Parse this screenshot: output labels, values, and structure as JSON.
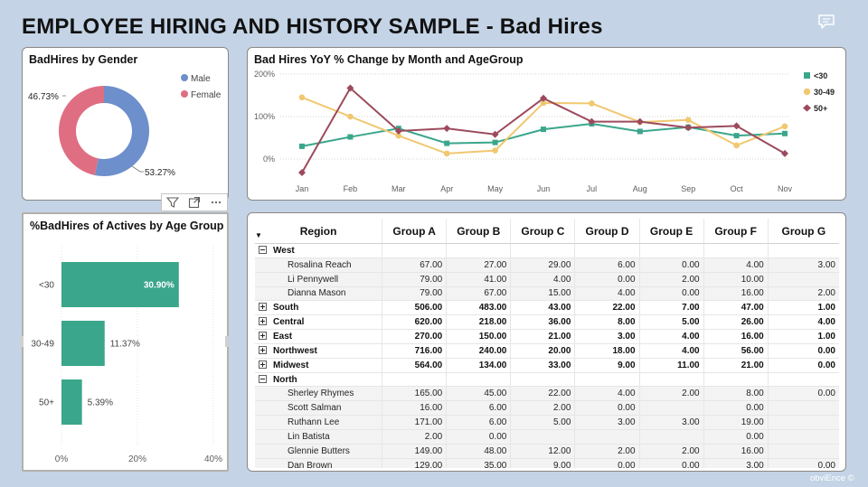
{
  "report": {
    "title": "EMPLOYEE HIRING AND HISTORY SAMPLE - Bad Hires",
    "brand": "obviEnce ©"
  },
  "icons": {
    "comment": "comment-icon",
    "filter": "filter-icon",
    "focus": "focus-mode-icon",
    "more": "more-options-icon",
    "sort": "sort-descending-icon"
  },
  "colors": {
    "male": "#6d8fcb",
    "female": "#df6e82",
    "lt30": "#3aa68b",
    "g3049": "#f0c870",
    "g50": "#9c4a5c",
    "bar": "#3aa68b"
  },
  "gender_chart": {
    "title": "BadHires by Gender",
    "chart_data": {
      "type": "pie",
      "labels": [
        "Male",
        "Female"
      ],
      "values": [
        53.27,
        46.73
      ],
      "value_labels": [
        "53.27%",
        "46.73%"
      ],
      "legend": "top-right",
      "donut": true
    }
  },
  "line_chart": {
    "title": "Bad Hires YoY % Change by Month and AgeGroup",
    "chart_data": {
      "type": "line",
      "x": [
        "Jan",
        "Feb",
        "Mar",
        "Apr",
        "May",
        "Jun",
        "Jul",
        "Aug",
        "Sep",
        "Oct",
        "Nov"
      ],
      "series": [
        {
          "name": "<30",
          "values": [
            30,
            52,
            72,
            37,
            39,
            70,
            83,
            65,
            75,
            55,
            60
          ]
        },
        {
          "name": "30-49",
          "values": [
            145,
            100,
            55,
            13,
            20,
            132,
            131,
            87,
            92,
            32,
            77
          ]
        },
        {
          "name": "50+",
          "values": [
            -32,
            167,
            66,
            72,
            58,
            143,
            88,
            88,
            74,
            78,
            13
          ]
        }
      ],
      "y_ticks": [
        "200%",
        "100%",
        "0%"
      ],
      "ylim": [
        -40,
        200
      ],
      "legend": "right",
      "grid": true
    }
  },
  "bar_chart": {
    "title": "%BadHires of Actives by Age Group",
    "chart_data": {
      "type": "bar",
      "orientation": "horizontal",
      "categories": [
        "<30",
        "30-49",
        "50+"
      ],
      "values": [
        30.9,
        11.37,
        5.39
      ],
      "value_labels": [
        "30.90%",
        "11.37%",
        "5.39%"
      ],
      "x_ticks": [
        "0%",
        "20%",
        "40%"
      ],
      "xlim": [
        0,
        40
      ]
    }
  },
  "matrix": {
    "columns": [
      "Region",
      "Group A",
      "Group B",
      "Group C",
      "Group D",
      "Group E",
      "Group F",
      "Group G"
    ],
    "rows": [
      {
        "type": "region",
        "expanded": true,
        "label": "West",
        "values": [
          "",
          "",
          "",
          "",
          "",
          "",
          ""
        ]
      },
      {
        "type": "child",
        "label": "Rosalina Reach",
        "values": [
          "67.00",
          "27.00",
          "29.00",
          "6.00",
          "0.00",
          "4.00",
          "3.00"
        ]
      },
      {
        "type": "child",
        "label": "Li Pennywell",
        "values": [
          "79.00",
          "41.00",
          "4.00",
          "0.00",
          "2.00",
          "10.00",
          ""
        ]
      },
      {
        "type": "child",
        "label": "Dianna Mason",
        "values": [
          "79.00",
          "67.00",
          "15.00",
          "4.00",
          "0.00",
          "16.00",
          "2.00"
        ]
      },
      {
        "type": "region",
        "expanded": false,
        "label": "South",
        "values": [
          "506.00",
          "483.00",
          "43.00",
          "22.00",
          "7.00",
          "47.00",
          "1.00"
        ]
      },
      {
        "type": "region",
        "expanded": false,
        "label": "Central",
        "values": [
          "620.00",
          "218.00",
          "36.00",
          "8.00",
          "5.00",
          "26.00",
          "4.00"
        ]
      },
      {
        "type": "region",
        "expanded": false,
        "label": "East",
        "values": [
          "270.00",
          "150.00",
          "21.00",
          "3.00",
          "4.00",
          "16.00",
          "1.00"
        ]
      },
      {
        "type": "region",
        "expanded": false,
        "label": "Northwest",
        "values": [
          "716.00",
          "240.00",
          "20.00",
          "18.00",
          "4.00",
          "56.00",
          "0.00"
        ]
      },
      {
        "type": "region",
        "expanded": false,
        "label": "Midwest",
        "values": [
          "564.00",
          "134.00",
          "33.00",
          "9.00",
          "11.00",
          "21.00",
          "0.00"
        ]
      },
      {
        "type": "region",
        "expanded": true,
        "label": "North",
        "values": [
          "",
          "",
          "",
          "",
          "",
          "",
          ""
        ]
      },
      {
        "type": "child",
        "label": "Sherley Rhymes",
        "values": [
          "165.00",
          "45.00",
          "22.00",
          "4.00",
          "2.00",
          "8.00",
          "0.00"
        ]
      },
      {
        "type": "child",
        "label": "Scott Salman",
        "values": [
          "16.00",
          "6.00",
          "2.00",
          "0.00",
          "",
          "0.00",
          ""
        ]
      },
      {
        "type": "child",
        "label": "Ruthann Lee",
        "values": [
          "171.00",
          "6.00",
          "5.00",
          "3.00",
          "3.00",
          "19.00",
          ""
        ]
      },
      {
        "type": "child",
        "label": "Lin Batista",
        "values": [
          "2.00",
          "0.00",
          "",
          "",
          "",
          "0.00",
          ""
        ]
      },
      {
        "type": "child",
        "label": "Glennie Butters",
        "values": [
          "149.00",
          "48.00",
          "12.00",
          "2.00",
          "2.00",
          "16.00",
          ""
        ]
      },
      {
        "type": "child",
        "label": "Dan Brown",
        "values": [
          "129.00",
          "35.00",
          "9.00",
          "0.00",
          "0.00",
          "3.00",
          "0.00"
        ]
      }
    ]
  }
}
